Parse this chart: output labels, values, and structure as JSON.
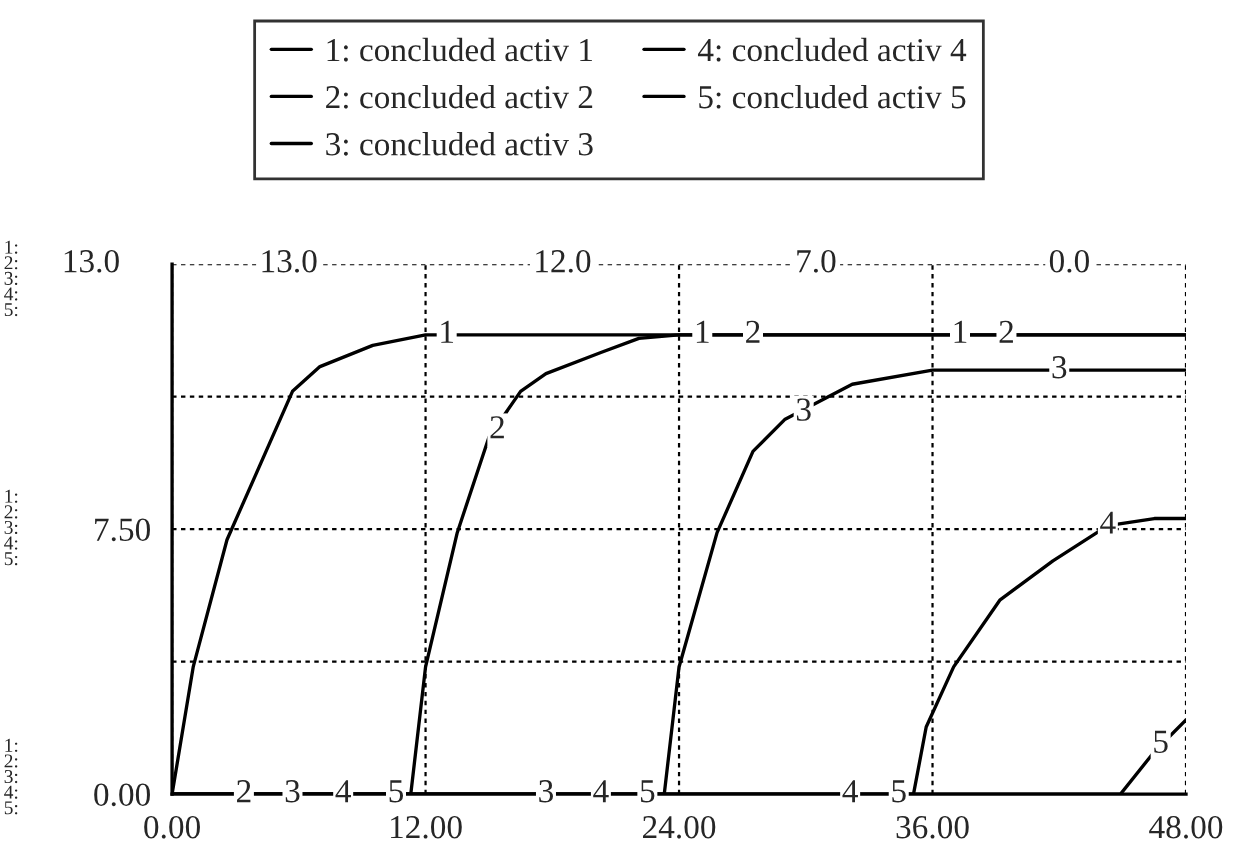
{
  "chart_data": {
    "type": "line",
    "xlim": [
      0,
      48
    ],
    "xticks": [
      {
        "value": 0,
        "label": "0.00"
      },
      {
        "value": 12,
        "label": "12.00"
      },
      {
        "value": 24,
        "label": "24.00"
      },
      {
        "value": 36,
        "label": "36.00"
      },
      {
        "value": 48,
        "label": "48.00"
      }
    ],
    "ylim": [
      0,
      15
    ],
    "yticks": [
      {
        "value": 0,
        "label": "0.00"
      },
      {
        "value": 3.75,
        "label": null
      },
      {
        "value": 7.5,
        "label": "7.50"
      },
      {
        "value": 11.25,
        "label": null
      },
      {
        "value": 15,
        "label": null
      }
    ],
    "grid": true,
    "legend": "top",
    "line_style": "solid",
    "series": [
      {
        "name": "1: concluded activ 1",
        "color": "#000000",
        "x": [
          0,
          1.0,
          2.6,
          5.7,
          7.0,
          9.5,
          12.0,
          48
        ],
        "values": [
          0,
          3.6,
          7.2,
          11.4,
          12.1,
          12.7,
          13.0,
          13.0
        ]
      },
      {
        "name": "2: concluded activ 2",
        "color": "#000000",
        "x": [
          0,
          11.3,
          12.0,
          13.5,
          15.0,
          16.5,
          17.7,
          20.3,
          22.1,
          24,
          48
        ],
        "values": [
          0,
          0,
          3.6,
          7.4,
          10.1,
          11.4,
          11.9,
          12.5,
          12.9,
          13.0,
          13.0
        ]
      },
      {
        "name": "3: concluded activ 3",
        "color": "#000000",
        "x": [
          0,
          23.3,
          24.0,
          25.8,
          27.5,
          29.0,
          32.2,
          36.0,
          48
        ],
        "values": [
          0,
          0,
          3.6,
          7.4,
          9.7,
          10.6,
          11.6,
          12.0,
          12.0
        ]
      },
      {
        "name": "4: concluded activ 4",
        "color": "#000000",
        "x": [
          0,
          35.1,
          35.7,
          37.0,
          39.2,
          41.7,
          44.3,
          46.5,
          48
        ],
        "values": [
          0,
          0,
          1.9,
          3.6,
          5.5,
          6.6,
          7.6,
          7.8,
          7.8
        ]
      },
      {
        "name": "5: concluded activ 5",
        "color": "#000000",
        "x": [
          0,
          44.9,
          46.5,
          48
        ],
        "values": [
          0,
          0,
          1.2,
          2.1
        ]
      }
    ],
    "annotations": [
      "13.0",
      "13.0",
      "12.0",
      "7.0",
      "0.0",
      "1:\n2:\n3:\n4:\n5:",
      "1:\n2:\n3:\n4:\n5:",
      "1:\n2:\n3:\n4:\n5:",
      {
        "text": "1",
        "x": 13.0,
        "y": 13.0
      },
      {
        "text": "1",
        "x": 25.1,
        "y": 13.0
      },
      {
        "text": "2",
        "x": 27.5,
        "y": 13.0
      },
      {
        "text": "1",
        "x": 37.3,
        "y": 13.0
      },
      {
        "text": "2",
        "x": 39.5,
        "y": 13.0
      },
      {
        "text": "2",
        "x": 15.4,
        "y": 10.3
      },
      {
        "text": "3",
        "x": 29.9,
        "y": 10.8
      },
      {
        "text": "3",
        "x": 42.0,
        "y": 12.0
      },
      {
        "text": "4",
        "x": 44.3,
        "y": 7.6
      },
      {
        "text": "5",
        "x": 46.8,
        "y": 1.4
      },
      {
        "text": "2",
        "x": 3.4,
        "y": 0
      },
      {
        "text": "3",
        "x": 5.7,
        "y": 0
      },
      {
        "text": "4",
        "x": 8.1,
        "y": 0
      },
      {
        "text": "5",
        "x": 10.6,
        "y": 0
      },
      {
        "text": "3",
        "x": 17.7,
        "y": 0
      },
      {
        "text": "4",
        "x": 20.3,
        "y": 0
      },
      {
        "text": "5",
        "x": 22.5,
        "y": 0
      },
      {
        "text": "4",
        "x": 32.1,
        "y": 0
      },
      {
        "text": "5",
        "x": 34.4,
        "y": 0
      }
    ]
  }
}
